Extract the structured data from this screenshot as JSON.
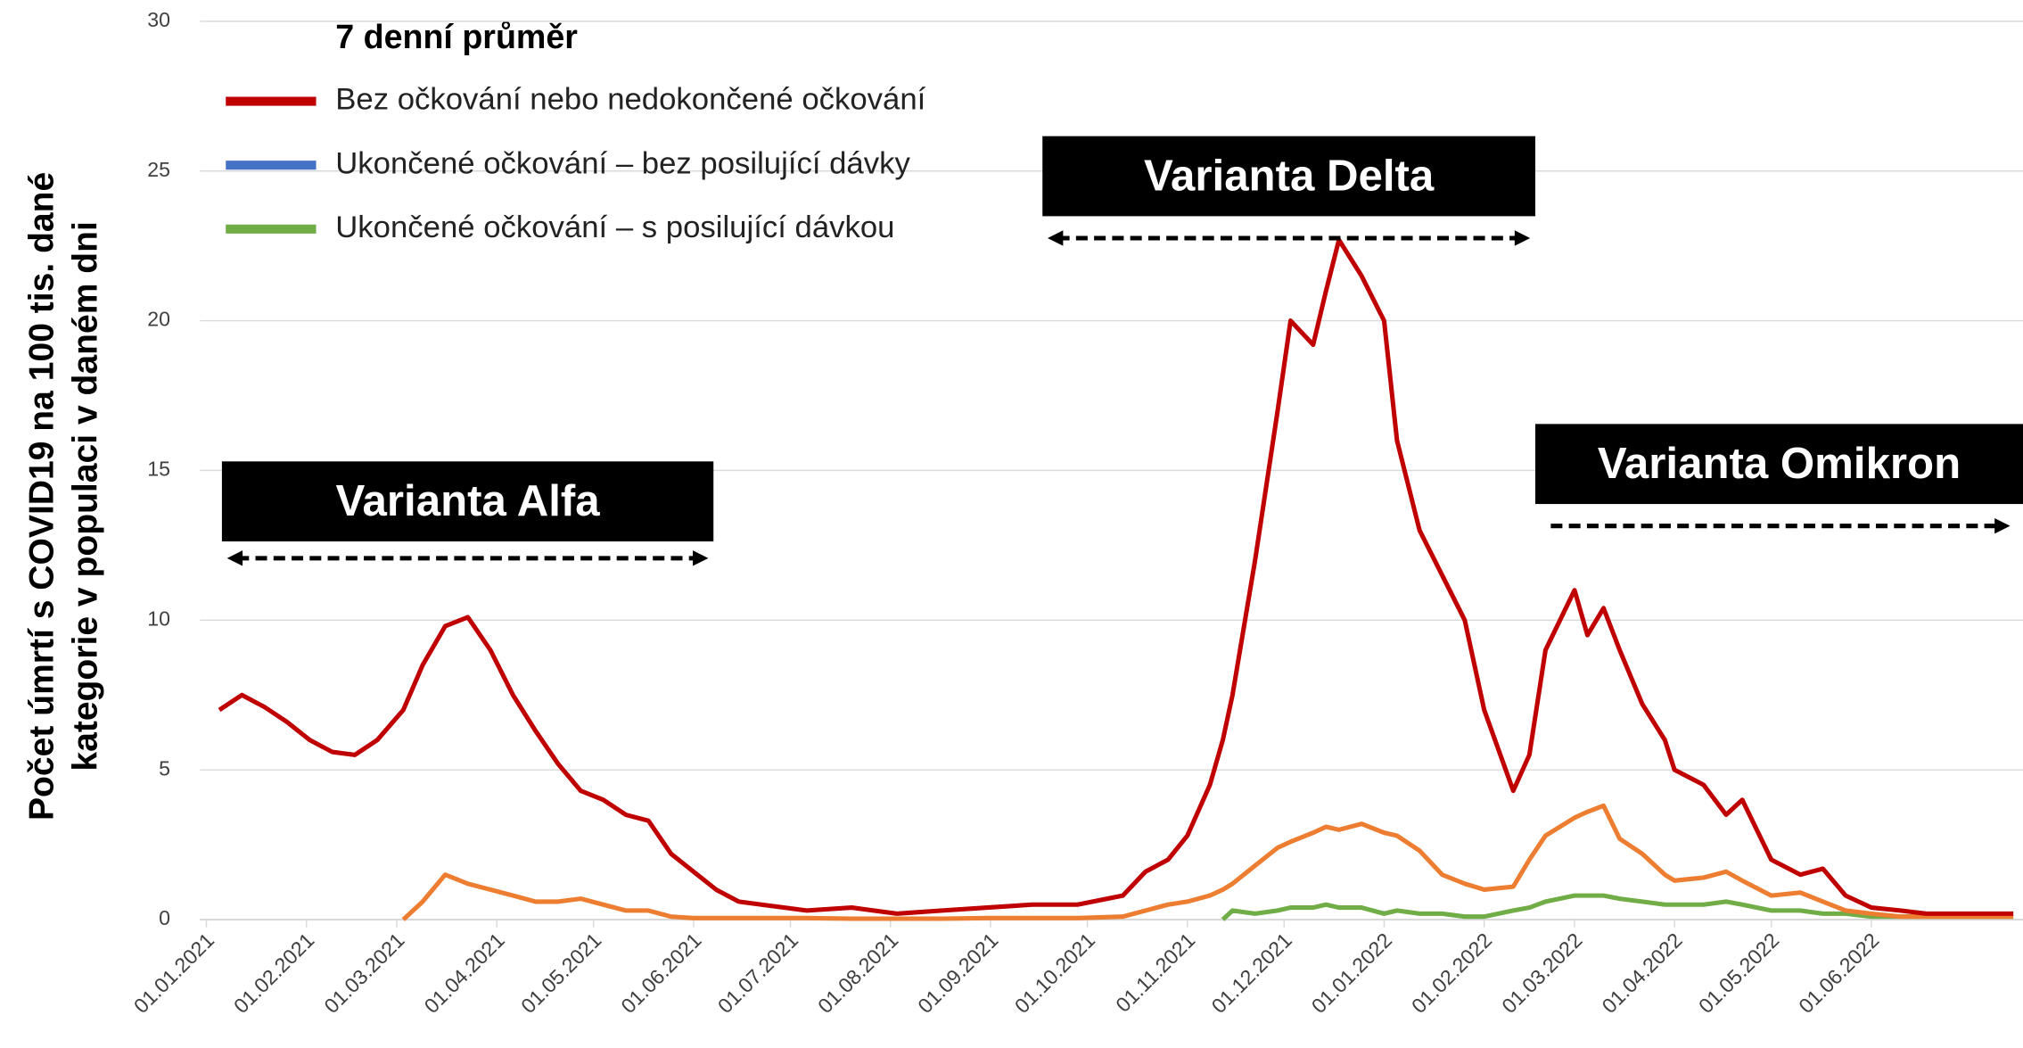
{
  "chart_data": {
    "type": "line",
    "y_label": [
      "Počet úmrtí s COVID19 na 100 tis. dané",
      "kategorie v populaci v daném dni"
    ],
    "legend_title": "7 denní průměr",
    "legend": "top-left",
    "grid": true,
    "xlim": [
      "01.01.2021",
      "18.07.2022"
    ],
    "xticks": [
      "01.01.2021",
      "01.02.2021",
      "01.03.2021",
      "01.04.2021",
      "01.05.2021",
      "01.06.2021",
      "01.07.2021",
      "01.08.2021",
      "01.09.2021",
      "01.10.2021",
      "01.11.2021",
      "01.12.2021",
      "01.01.2022",
      "01.02.2022",
      "01.03.2022",
      "01.04.2022",
      "01.05.2022",
      "01.06.2022"
    ],
    "ylim": [
      0,
      30
    ],
    "yticks": [
      0,
      5,
      10,
      15,
      20,
      25,
      30
    ],
    "x": [
      "05.01.2021",
      "12.01.2021",
      "19.01.2021",
      "26.01.2021",
      "02.02.2021",
      "09.02.2021",
      "16.02.2021",
      "23.02.2021",
      "03.03.2021",
      "09.03.2021",
      "16.03.2021",
      "23.03.2021",
      "30.03.2021",
      "06.04.2021",
      "13.04.2021",
      "20.04.2021",
      "27.04.2021",
      "04.05.2021",
      "11.05.2021",
      "18.05.2021",
      "25.05.2021",
      "01.06.2021",
      "08.06.2021",
      "15.06.2021",
      "22.06.2021",
      "06.07.2021",
      "20.07.2021",
      "03.08.2021",
      "17.08.2021",
      "31.08.2021",
      "14.09.2021",
      "28.09.2021",
      "12.10.2021",
      "19.10.2021",
      "26.10.2021",
      "01.11.2021",
      "08.11.2021",
      "12.11.2021",
      "15.11.2021",
      "22.11.2021",
      "29.11.2021",
      "03.12.2021",
      "10.12.2021",
      "14.12.2021",
      "18.12.2021",
      "25.12.2021",
      "01.01.2022",
      "05.01.2022",
      "12.01.2022",
      "19.01.2022",
      "26.01.2022",
      "01.02.2022",
      "10.02.2022",
      "15.02.2022",
      "20.02.2022",
      "01.03.2022",
      "05.03.2022",
      "10.03.2022",
      "15.03.2022",
      "22.03.2022",
      "29.03.2022",
      "01.04.2022",
      "10.04.2022",
      "17.04.2022",
      "22.04.2022",
      "01.05.2022",
      "10.05.2022",
      "17.05.2022",
      "24.05.2022",
      "01.06.2022",
      "10.06.2022",
      "18.06.2022",
      "01.07.2022",
      "15.07.2022"
    ],
    "series": [
      {
        "name": "Bez očkování nebo nedokončené očkování",
        "color": "#C00000",
        "legend_color": "#C00000",
        "values": [
          7.0,
          7.5,
          7.1,
          6.6,
          6.0,
          5.6,
          5.5,
          6.0,
          7.0,
          8.5,
          9.8,
          10.1,
          9.0,
          7.5,
          6.3,
          5.2,
          4.3,
          4.0,
          3.5,
          3.3,
          2.2,
          1.6,
          1.0,
          0.6,
          0.5,
          0.3,
          0.4,
          0.2,
          0.3,
          0.4,
          0.5,
          0.5,
          0.8,
          1.6,
          2.0,
          2.8,
          4.5,
          6.0,
          7.5,
          12.0,
          17.0,
          20.0,
          19.2,
          21.0,
          22.7,
          21.5,
          20.0,
          16.0,
          13.0,
          11.5,
          10.0,
          7.0,
          4.3,
          5.5,
          9.0,
          11.0,
          9.5,
          10.4,
          9.0,
          7.2,
          6.0,
          5.0,
          4.5,
          3.5,
          4.0,
          2.0,
          1.5,
          1.7,
          0.8,
          0.4,
          0.3,
          0.2,
          0.2,
          0.2
        ]
      },
      {
        "name": "Ukončené očkování – bez posilující dávky",
        "color": "#ED7D31",
        "legend_color": "#4472C4",
        "values": [
          null,
          null,
          null,
          null,
          null,
          null,
          null,
          null,
          0.0,
          0.6,
          1.5,
          1.2,
          1.0,
          0.8,
          0.6,
          0.6,
          0.7,
          0.5,
          0.3,
          0.3,
          0.1,
          0.05,
          0.05,
          0.05,
          0.05,
          0.05,
          0.03,
          0.03,
          0.03,
          0.05,
          0.05,
          0.05,
          0.1,
          0.3,
          0.5,
          0.6,
          0.8,
          1.0,
          1.2,
          1.8,
          2.4,
          2.6,
          2.9,
          3.1,
          3.0,
          3.2,
          2.9,
          2.8,
          2.3,
          1.5,
          1.2,
          1.0,
          1.1,
          2.0,
          2.8,
          3.4,
          3.6,
          3.8,
          2.7,
          2.2,
          1.5,
          1.3,
          1.4,
          1.6,
          1.3,
          0.8,
          0.9,
          0.6,
          0.3,
          0.2,
          0.1,
          0.1,
          0.1,
          0.1
        ]
      },
      {
        "name": "Ukončené očkování – s posilující dávkou",
        "color": "#70AD47",
        "legend_color": "#70AD47",
        "values": [
          null,
          null,
          null,
          null,
          null,
          null,
          null,
          null,
          null,
          null,
          null,
          null,
          null,
          null,
          null,
          null,
          null,
          null,
          null,
          null,
          null,
          null,
          null,
          null,
          null,
          null,
          null,
          null,
          null,
          null,
          null,
          null,
          null,
          null,
          null,
          null,
          null,
          0.0,
          0.3,
          0.2,
          0.3,
          0.4,
          0.4,
          0.5,
          0.4,
          0.4,
          0.2,
          0.3,
          0.2,
          0.2,
          0.1,
          0.1,
          0.3,
          0.4,
          0.6,
          0.8,
          0.8,
          0.8,
          0.7,
          0.6,
          0.5,
          0.5,
          0.5,
          0.6,
          0.5,
          0.3,
          0.3,
          0.2,
          0.2,
          0.1,
          0.1,
          0.1,
          0.1,
          0.1
        ]
      }
    ],
    "annotations": [
      {
        "text": "Varianta Alfa"
      },
      {
        "text": "Varianta Delta"
      },
      {
        "text": "Varianta Omikron"
      }
    ]
  }
}
